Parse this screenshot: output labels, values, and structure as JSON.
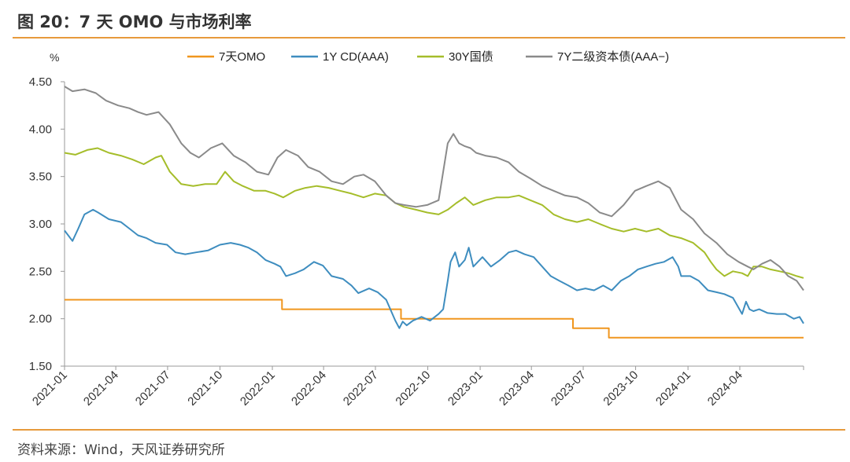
{
  "header": {
    "title": "图 20：7 天 OMO 与市场利率"
  },
  "footer": {
    "source": "资料来源：Wind，天风证券研究所"
  },
  "chart_data": {
    "type": "line",
    "title": "图 20：7 天 OMO 与市场利率",
    "ylabel": "%",
    "xlabel": "",
    "ylim": [
      1.5,
      4.5
    ],
    "yticks": [
      "4.50",
      "4.00",
      "3.50",
      "3.00",
      "2.50",
      "2.00",
      "1.50"
    ],
    "xlim": [
      "2021-01-01",
      "2024-07-22"
    ],
    "xticks": [
      "2021-01",
      "2021-04",
      "2021-07",
      "2021-10",
      "2022-01",
      "2022-04",
      "2022-07",
      "2022-10",
      "2023-01",
      "2023-04",
      "2023-07",
      "2023-10",
      "2024-01",
      "2024-04"
    ],
    "grid": false,
    "legend": "top",
    "series": [
      {
        "name": "7天OMO",
        "color": "#f0961e",
        "step": true,
        "x": [
          "2021-01-01",
          "2022-01-18",
          "2022-08-15",
          "2023-06-13",
          "2023-08-15",
          "2024-07-22"
        ],
        "y": [
          2.2,
          2.1,
          2.0,
          1.9,
          1.8,
          1.8
        ]
      },
      {
        "name": "1Y CD(AAA)",
        "color": "#3e8dbf",
        "x": [
          "2021-01-01",
          "2021-01-15",
          "2021-01-25",
          "2021-02-05",
          "2021-02-20",
          "2021-03-01",
          "2021-03-20",
          "2021-04-10",
          "2021-04-25",
          "2021-05-10",
          "2021-05-25",
          "2021-06-10",
          "2021-06-30",
          "2021-07-15",
          "2021-08-01",
          "2021-08-20",
          "2021-09-10",
          "2021-10-01",
          "2021-10-20",
          "2021-11-05",
          "2021-11-20",
          "2021-12-05",
          "2021-12-20",
          "2022-01-05",
          "2022-01-15",
          "2022-01-25",
          "2022-02-10",
          "2022-02-25",
          "2022-03-15",
          "2022-03-31",
          "2022-04-15",
          "2022-05-05",
          "2022-05-20",
          "2022-06-01",
          "2022-06-20",
          "2022-07-05",
          "2022-07-20",
          "2022-08-05",
          "2022-08-12",
          "2022-08-18",
          "2022-08-25",
          "2022-09-05",
          "2022-09-20",
          "2022-10-05",
          "2022-10-20",
          "2022-10-28",
          "2022-11-05",
          "2022-11-10",
          "2022-11-18",
          "2022-11-25",
          "2022-12-05",
          "2022-12-12",
          "2022-12-20",
          "2023-01-05",
          "2023-01-20",
          "2023-02-05",
          "2023-02-20",
          "2023-03-05",
          "2023-03-20",
          "2023-04-05",
          "2023-04-20",
          "2023-05-05",
          "2023-05-20",
          "2023-06-05",
          "2023-06-20",
          "2023-07-05",
          "2023-07-20",
          "2023-08-05",
          "2023-08-20",
          "2023-09-05",
          "2023-09-20",
          "2023-10-05",
          "2023-10-20",
          "2023-11-05",
          "2023-11-20",
          "2023-12-05",
          "2023-12-15",
          "2023-12-20",
          "2024-01-05",
          "2024-01-20",
          "2024-02-05",
          "2024-02-20",
          "2024-03-05",
          "2024-03-20",
          "2024-04-05",
          "2024-04-12",
          "2024-04-18",
          "2024-04-25",
          "2024-05-05",
          "2024-05-20",
          "2024-06-05",
          "2024-06-20",
          "2024-07-05",
          "2024-07-15",
          "2024-07-22"
        ],
        "y": [
          2.93,
          2.82,
          2.95,
          3.1,
          3.15,
          3.12,
          3.05,
          3.02,
          2.95,
          2.88,
          2.85,
          2.8,
          2.78,
          2.7,
          2.68,
          2.7,
          2.72,
          2.78,
          2.8,
          2.78,
          2.75,
          2.7,
          2.62,
          2.58,
          2.55,
          2.45,
          2.48,
          2.52,
          2.6,
          2.56,
          2.45,
          2.42,
          2.35,
          2.27,
          2.32,
          2.28,
          2.2,
          1.98,
          1.9,
          1.97,
          1.93,
          1.98,
          2.02,
          1.98,
          2.05,
          2.1,
          2.4,
          2.6,
          2.7,
          2.55,
          2.62,
          2.75,
          2.55,
          2.65,
          2.55,
          2.62,
          2.7,
          2.72,
          2.68,
          2.65,
          2.55,
          2.45,
          2.4,
          2.35,
          2.3,
          2.32,
          2.3,
          2.35,
          2.3,
          2.4,
          2.45,
          2.52,
          2.55,
          2.58,
          2.6,
          2.65,
          2.55,
          2.45,
          2.45,
          2.4,
          2.3,
          2.28,
          2.26,
          2.22,
          2.05,
          2.18,
          2.1,
          2.08,
          2.1,
          2.06,
          2.05,
          2.05,
          2.0,
          2.02,
          1.95
        ]
      },
      {
        "name": "30Y国债",
        "color": "#a5bd2a",
        "x": [
          "2021-01-01",
          "2021-01-20",
          "2021-02-10",
          "2021-02-28",
          "2021-03-20",
          "2021-04-10",
          "2021-04-30",
          "2021-05-20",
          "2021-06-10",
          "2021-06-20",
          "2021-07-05",
          "2021-07-25",
          "2021-08-15",
          "2021-09-05",
          "2021-09-25",
          "2021-10-10",
          "2021-10-25",
          "2021-11-10",
          "2021-11-30",
          "2021-12-20",
          "2022-01-05",
          "2022-01-20",
          "2022-02-10",
          "2022-02-28",
          "2022-03-20",
          "2022-04-10",
          "2022-04-30",
          "2022-05-20",
          "2022-06-10",
          "2022-06-30",
          "2022-07-20",
          "2022-08-05",
          "2022-08-20",
          "2022-09-10",
          "2022-09-30",
          "2022-10-20",
          "2022-11-05",
          "2022-11-20",
          "2022-12-05",
          "2022-12-20",
          "2023-01-10",
          "2023-01-30",
          "2023-02-20",
          "2023-03-10",
          "2023-03-30",
          "2023-04-20",
          "2023-05-10",
          "2023-05-30",
          "2023-06-20",
          "2023-07-10",
          "2023-07-30",
          "2023-08-20",
          "2023-09-10",
          "2023-09-30",
          "2023-10-20",
          "2023-11-10",
          "2023-11-30",
          "2023-12-20",
          "2024-01-10",
          "2024-01-30",
          "2024-02-10",
          "2024-02-20",
          "2024-03-05",
          "2024-03-20",
          "2024-04-05",
          "2024-04-15",
          "2024-04-25",
          "2024-05-10",
          "2024-05-25",
          "2024-06-10",
          "2024-06-25",
          "2024-07-10",
          "2024-07-22"
        ],
        "y": [
          3.75,
          3.73,
          3.78,
          3.8,
          3.75,
          3.72,
          3.68,
          3.63,
          3.7,
          3.72,
          3.55,
          3.42,
          3.4,
          3.42,
          3.42,
          3.55,
          3.45,
          3.4,
          3.35,
          3.35,
          3.32,
          3.28,
          3.35,
          3.38,
          3.4,
          3.38,
          3.35,
          3.32,
          3.28,
          3.32,
          3.3,
          3.22,
          3.18,
          3.15,
          3.12,
          3.1,
          3.15,
          3.22,
          3.28,
          3.2,
          3.25,
          3.28,
          3.28,
          3.3,
          3.25,
          3.2,
          3.1,
          3.05,
          3.02,
          3.05,
          3.0,
          2.95,
          2.92,
          2.95,
          2.92,
          2.95,
          2.88,
          2.85,
          2.8,
          2.7,
          2.6,
          2.52,
          2.45,
          2.5,
          2.48,
          2.45,
          2.55,
          2.55,
          2.52,
          2.5,
          2.48,
          2.45,
          2.43
        ]
      },
      {
        "name": "7Y二级资本债(AAA−)",
        "color": "#8a8a8a",
        "x": [
          "2021-01-01",
          "2021-01-15",
          "2021-02-05",
          "2021-02-25",
          "2021-03-15",
          "2021-04-05",
          "2021-04-25",
          "2021-05-10",
          "2021-05-25",
          "2021-06-15",
          "2021-07-05",
          "2021-07-25",
          "2021-08-10",
          "2021-08-25",
          "2021-09-15",
          "2021-10-05",
          "2021-10-25",
          "2021-11-15",
          "2021-12-05",
          "2021-12-25",
          "2022-01-10",
          "2022-01-25",
          "2022-02-15",
          "2022-03-05",
          "2022-03-25",
          "2022-04-15",
          "2022-05-05",
          "2022-05-25",
          "2022-06-10",
          "2022-06-30",
          "2022-07-20",
          "2022-08-05",
          "2022-08-20",
          "2022-09-10",
          "2022-09-30",
          "2022-10-20",
          "2022-11-05",
          "2022-11-15",
          "2022-11-25",
          "2022-12-05",
          "2022-12-15",
          "2022-12-25",
          "2023-01-10",
          "2023-01-30",
          "2023-02-20",
          "2023-03-10",
          "2023-03-30",
          "2023-04-20",
          "2023-05-10",
          "2023-05-30",
          "2023-06-20",
          "2023-07-10",
          "2023-07-30",
          "2023-08-20",
          "2023-09-10",
          "2023-09-30",
          "2023-10-20",
          "2023-11-10",
          "2023-11-30",
          "2023-12-20",
          "2024-01-10",
          "2024-01-30",
          "2024-02-20",
          "2024-03-10",
          "2024-03-30",
          "2024-04-15",
          "2024-04-25",
          "2024-05-10",
          "2024-05-25",
          "2024-06-10",
          "2024-06-25",
          "2024-07-10",
          "2024-07-22"
        ],
        "y": [
          4.45,
          4.4,
          4.42,
          4.38,
          4.3,
          4.25,
          4.22,
          4.18,
          4.15,
          4.18,
          4.05,
          3.85,
          3.75,
          3.7,
          3.8,
          3.85,
          3.72,
          3.65,
          3.55,
          3.52,
          3.7,
          3.78,
          3.72,
          3.6,
          3.55,
          3.45,
          3.42,
          3.5,
          3.52,
          3.45,
          3.3,
          3.22,
          3.2,
          3.18,
          3.2,
          3.25,
          3.85,
          3.95,
          3.85,
          3.82,
          3.8,
          3.75,
          3.72,
          3.7,
          3.65,
          3.55,
          3.48,
          3.4,
          3.35,
          3.3,
          3.28,
          3.22,
          3.12,
          3.08,
          3.2,
          3.35,
          3.4,
          3.45,
          3.38,
          3.15,
          3.05,
          2.9,
          2.8,
          2.68,
          2.6,
          2.55,
          2.52,
          2.58,
          2.62,
          2.55,
          2.45,
          2.4,
          2.3
        ]
      }
    ]
  }
}
